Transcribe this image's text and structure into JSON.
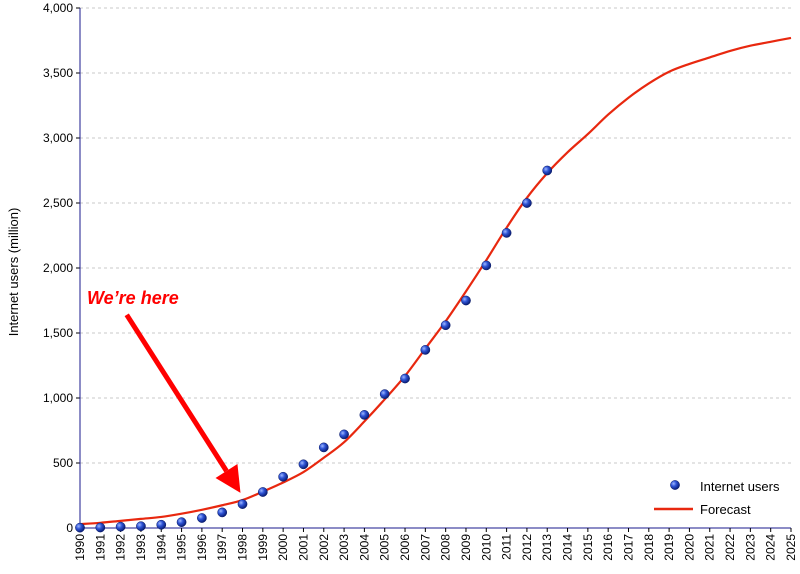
{
  "chart_data": {
    "type": "scatter",
    "ylabel": "Internet users (million)",
    "xlabel": "",
    "title": "",
    "xlim": [
      1990,
      2025
    ],
    "ylim": [
      0,
      4000
    ],
    "y_ticks": [
      0,
      500,
      1000,
      1500,
      2000,
      2500,
      3000,
      3500,
      4000
    ],
    "y_tick_labels": [
      "0",
      "500",
      "1,000",
      "1,500",
      "2,000",
      "2,500",
      "3,000",
      "3,500",
      "4,000"
    ],
    "x_ticks": [
      1990,
      1991,
      1992,
      1993,
      1994,
      1995,
      1996,
      1997,
      1998,
      1999,
      2000,
      2001,
      2002,
      2003,
      2004,
      2005,
      2006,
      2007,
      2008,
      2009,
      2010,
      2011,
      2012,
      2013,
      2014,
      2015,
      2016,
      2017,
      2018,
      2019,
      2020,
      2021,
      2022,
      2023,
      2024,
      2025
    ],
    "x_tick_labels": [
      "1990",
      "1991",
      "1992",
      "1993",
      "1994",
      "1995",
      "1996",
      "1997",
      "1998",
      "1999",
      "2000",
      "2001",
      "2002",
      "2003",
      "2004",
      "2005",
      "2006",
      "2007",
      "2008",
      "2009",
      "2010",
      "2011",
      "2012",
      "2013",
      "2014",
      "2015",
      "2016",
      "2017",
      "2018",
      "2019",
      "2020",
      "2021",
      "2022",
      "2023",
      "2024",
      "2025"
    ],
    "grid": "horizontal dashed",
    "legend_position": "bottom-right",
    "series": [
      {
        "name": "Internet users",
        "type": "scatter",
        "color": "#1f3fbf",
        "x": [
          1990,
          1991,
          1992,
          1993,
          1994,
          1995,
          1996,
          1997,
          1998,
          1999,
          2000,
          2001,
          2002,
          2003,
          2004,
          2005,
          2006,
          2007,
          2008,
          2009,
          2010,
          2011,
          2012,
          2013
        ],
        "y": [
          3,
          4,
          10,
          14,
          25,
          45,
          77,
          120,
          184,
          277,
          394,
          490,
          620,
          720,
          870,
          1030,
          1150,
          1370,
          1560,
          1750,
          2020,
          2270,
          2500,
          2750
        ]
      },
      {
        "name": "Forecast",
        "type": "line",
        "color": "#e8280f",
        "x": [
          1990,
          1991,
          1992,
          1993,
          1994,
          1995,
          1996,
          1997,
          1998,
          1999,
          2000,
          2001,
          2002,
          2003,
          2004,
          2005,
          2006,
          2007,
          2008,
          2009,
          2010,
          2011,
          2012,
          2013,
          2014,
          2015,
          2016,
          2017,
          2018,
          2019,
          2020,
          2021,
          2022,
          2023,
          2024,
          2025
        ],
        "y": [
          30,
          40,
          55,
          70,
          85,
          110,
          140,
          175,
          215,
          280,
          350,
          430,
          540,
          660,
          820,
          990,
          1170,
          1380,
          1590,
          1820,
          2060,
          2310,
          2540,
          2730,
          2890,
          3030,
          3180,
          3310,
          3420,
          3510,
          3570,
          3620,
          3670,
          3710,
          3740,
          3770
        ]
      }
    ],
    "annotation": {
      "text": "We’re here",
      "color": "#ff0000",
      "arrow_from": [
        1992.3,
        1640
      ],
      "arrow_to": [
        1997.9,
        270
      ]
    }
  }
}
